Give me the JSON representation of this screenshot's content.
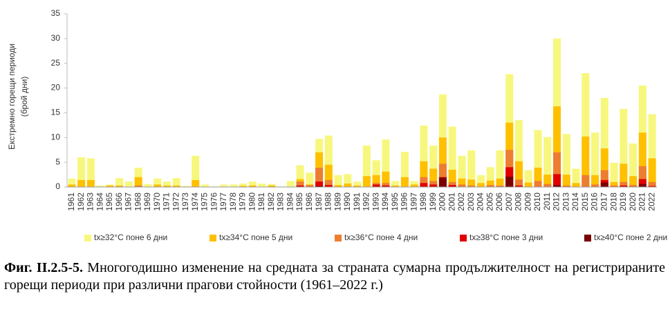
{
  "chart_data": {
    "type": "bar",
    "overlap": true,
    "y_label": [
      "Екстремно горещи периоди",
      "(брой дни)"
    ],
    "categories": [
      "1961",
      "1962",
      "1963",
      "1964",
      "1965",
      "1966",
      "1967",
      "1968",
      "1969",
      "1970",
      "1971",
      "1972",
      "1973",
      "1974",
      "1975",
      "1976",
      "1977",
      "1978",
      "1979",
      "1980",
      "1981",
      "1982",
      "1983",
      "1984",
      "1985",
      "1986",
      "1987",
      "1988",
      "1989",
      "1990",
      "1991",
      "1992",
      "1993",
      "1994",
      "1995",
      "1996",
      "1997",
      "1998",
      "1999",
      "2000",
      "2001",
      "2002",
      "2003",
      "2004",
      "2005",
      "2006",
      "2007",
      "2008",
      "2009",
      "2010",
      "2011",
      "2012",
      "2013",
      "2014",
      "2015",
      "2016",
      "2017",
      "2018",
      "2019",
      "2020",
      "2021",
      "2022"
    ],
    "series": [
      {
        "name": "tx≥32°C поне 6 дни",
        "color": "#f7f77e",
        "values": [
          1.7,
          6,
          5.8,
          0.3,
          0.5,
          1.8,
          1.1,
          3.9,
          0.6,
          1.7,
          1.1,
          1.8,
          0.2,
          6.3,
          0.5,
          0.1,
          0.5,
          0.5,
          0.7,
          1.1,
          0.7,
          0.6,
          0.1,
          1.2,
          4.4,
          2.9,
          9.7,
          10.4,
          2.4,
          2.6,
          1.1,
          8.4,
          5.4,
          9.6,
          1.2,
          7.1,
          1.2,
          12.4,
          8.4,
          18.7,
          12.2,
          6.3,
          7.4,
          2.4,
          4,
          7.4,
          22.8,
          13.5,
          3.4,
          11.5,
          10.1,
          30,
          10.7,
          3.7,
          23,
          11,
          18,
          4.9,
          15.8,
          8.8,
          20.5,
          14.7
        ]
      },
      {
        "name": "tx≥34°C поне 5 дни",
        "color": "#ffc000",
        "values": [
          0.5,
          1.4,
          1.4,
          0,
          0.3,
          0.3,
          0,
          2,
          0,
          0.5,
          0.3,
          0.3,
          0,
          1.4,
          0,
          0,
          0,
          0,
          0.2,
          0.3,
          0,
          0.3,
          0,
          0,
          1.6,
          0.5,
          7,
          4.5,
          0.4,
          0.7,
          0.3,
          2.2,
          2.4,
          3.1,
          0.3,
          2,
          0.5,
          5.2,
          3.7,
          10,
          3.5,
          1.7,
          1.5,
          0.8,
          1.3,
          1.7,
          13,
          5.2,
          0.9,
          3.9,
          2.5,
          16.3,
          2.5,
          0.8,
          10.2,
          2.4,
          7.8,
          1,
          4.7,
          2.2,
          11,
          5.8
        ]
      },
      {
        "name": "tx≥36°C поне 4 дни",
        "color": "#ed7d31",
        "values": [
          0,
          0,
          0,
          0,
          0,
          0,
          0,
          0.3,
          0,
          0,
          0,
          0,
          0,
          0,
          0,
          0,
          0,
          0,
          0,
          0,
          0,
          0,
          0,
          0,
          1.1,
          0.4,
          3.9,
          1.4,
          0,
          0,
          0,
          0,
          0.8,
          0.8,
          0,
          0,
          0,
          2,
          1.2,
          4.7,
          1,
          0.5,
          0.3,
          0,
          0.4,
          0.3,
          7.5,
          1.5,
          0,
          1.2,
          0.6,
          7,
          0.3,
          0,
          2.4,
          0.5,
          3.4,
          0.3,
          1,
          0.4,
          4.2,
          1
        ]
      },
      {
        "name": "tx≥38°C поне 3 дни",
        "color": "#e00000",
        "values": [
          0,
          0,
          0,
          0,
          0,
          0,
          0,
          0,
          0,
          0,
          0,
          0,
          0,
          0,
          0,
          0,
          0,
          0,
          0,
          0,
          0,
          0,
          0,
          0,
          0.3,
          0,
          1.1,
          0.4,
          0,
          0,
          0,
          0,
          0.5,
          0.3,
          0,
          0,
          0,
          0.8,
          0.5,
          2,
          0.4,
          0,
          0,
          0,
          0,
          0,
          4,
          0.3,
          0,
          0,
          0,
          2.6,
          0,
          0,
          0,
          0,
          1.4,
          0,
          0.3,
          0,
          1.6,
          0.2
        ]
      },
      {
        "name": "tx≥40°C поне 2 дни",
        "color": "#7b0000",
        "values": [
          0,
          0,
          0,
          0,
          0,
          0,
          0,
          0,
          0,
          0,
          0,
          0,
          0,
          0,
          0,
          0,
          0,
          0,
          0,
          0,
          0,
          0,
          0,
          0,
          0,
          0,
          0.2,
          0,
          0,
          0,
          0,
          0,
          0,
          0,
          0,
          0,
          0,
          0,
          0,
          1.9,
          0,
          0,
          0,
          0,
          0,
          0,
          2.1,
          0,
          0,
          0,
          0,
          0.4,
          0,
          0,
          0,
          0,
          0.9,
          0,
          0,
          0,
          0.6,
          0
        ]
      }
    ],
    "ylim": [
      0,
      35
    ],
    "yticks": [
      0,
      5,
      10,
      15,
      20,
      25,
      30,
      35
    ],
    "grid": false,
    "legend": "bottom"
  },
  "caption": {
    "label": "Фиг. II.2.5-5.",
    "text": "Многогодишно изменение на средната за страната сумарна продължителност на регистрираните горещи периоди при различни прагови стойности (1961–2022 г.)"
  }
}
